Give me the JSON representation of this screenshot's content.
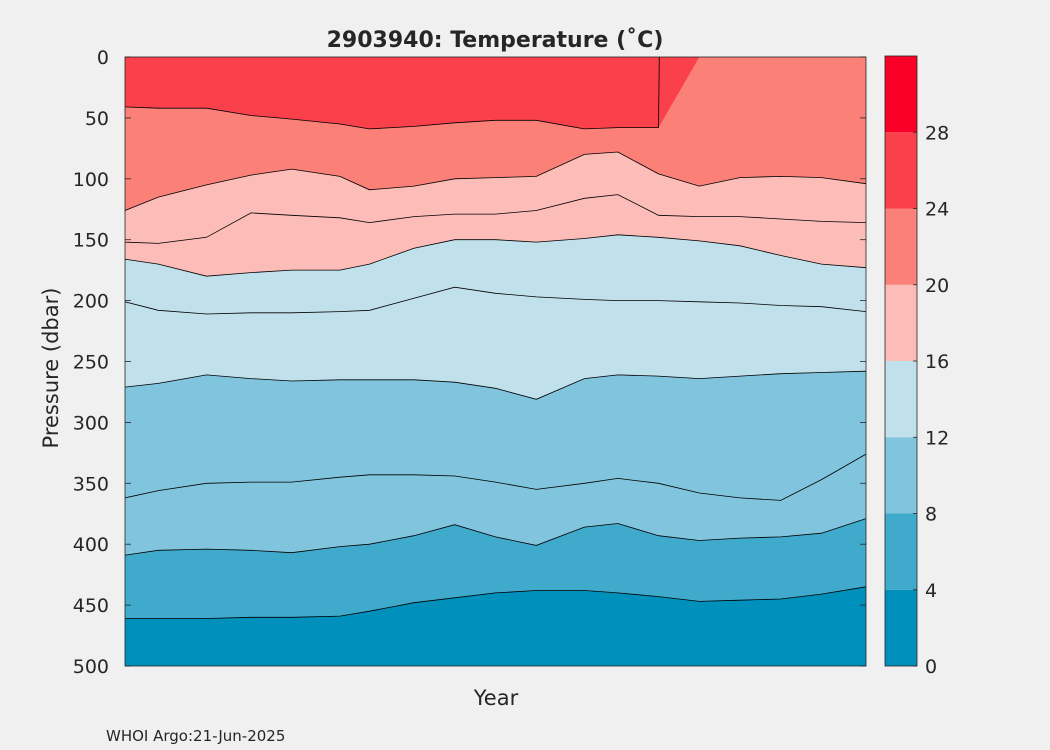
{
  "chart_data": {
    "type": "contour",
    "title": "2903940:  Temperature (˚C)",
    "xlabel": "Year",
    "ylabel": "Pressure (dbar)",
    "ylim": [
      0,
      500
    ],
    "y_reversed": true,
    "y_ticks": [
      "0",
      "50",
      "100",
      "150",
      "200",
      "250",
      "300",
      "350",
      "400",
      "450",
      "500"
    ],
    "x_ticks": [],
    "colorbar": {
      "range": [
        0,
        32
      ],
      "tick_values": [
        0,
        4,
        8,
        12,
        16,
        20,
        24,
        28
      ],
      "tick_labels": [
        "0",
        "4",
        "8",
        "12",
        "16",
        "20",
        "24",
        "28"
      ],
      "levels": [
        {
          "from": 0,
          "to": 4,
          "color": "#0090bc"
        },
        {
          "from": 4,
          "to": 8,
          "color": "#40aacc"
        },
        {
          "from": 8,
          "to": 12,
          "color": "#80c4de"
        },
        {
          "from": 12,
          "to": 16,
          "color": "#c0e0ec"
        },
        {
          "from": 16,
          "to": 20,
          "color": "#fcbcb8"
        },
        {
          "from": 20,
          "to": 24,
          "color": "#fa8078"
        },
        {
          "from": 24,
          "to": 28,
          "color": "#fa404a"
        },
        {
          "from": 28,
          "to": 32,
          "color": "#fa0028"
        }
      ]
    },
    "x_profile_positions": [
      0,
      0.045,
      0.11,
      0.17,
      0.225,
      0.29,
      0.33,
      0.39,
      0.445,
      0.5,
      0.555,
      0.62,
      0.665,
      0.72,
      0.775,
      0.83,
      0.885,
      0.94,
      1.0
    ],
    "contours": [
      {
        "level": 4,
        "depths": [
          461,
          461,
          461,
          460,
          460,
          459,
          455,
          448,
          444,
          440,
          438,
          438,
          440,
          443,
          447,
          446,
          445,
          441,
          435
        ]
      },
      {
        "level": 8,
        "depths": [
          409,
          405,
          404,
          405,
          407,
          402,
          400,
          393,
          384,
          394,
          401,
          386,
          383,
          393,
          397,
          395,
          394,
          391,
          379
        ]
      },
      {
        "level": 8,
        "depths": [
          362,
          356,
          350,
          349,
          349,
          345,
          343,
          343,
          344,
          349,
          355,
          350,
          346,
          350,
          358,
          362,
          364,
          347,
          326
        ]
      },
      {
        "level": 12,
        "depths": [
          271,
          268,
          261,
          264,
          266,
          265,
          265,
          265,
          267,
          272,
          281,
          264,
          261,
          262,
          264,
          262,
          260,
          259,
          258
        ]
      },
      {
        "level": 12,
        "depths": [
          201,
          208,
          211,
          210,
          210,
          209,
          208,
          198,
          189,
          194,
          197,
          199,
          200,
          200,
          201,
          202,
          204,
          205,
          209
        ]
      },
      {
        "level": 16,
        "depths": [
          166,
          170,
          180,
          177,
          175,
          175,
          170,
          157,
          150,
          150,
          152,
          149,
          146,
          148,
          151,
          155,
          163,
          170,
          173
        ]
      },
      {
        "level": 16,
        "depths": [
          152,
          153,
          148,
          128,
          130,
          132,
          136,
          131,
          129,
          129,
          126,
          116,
          113,
          130,
          131,
          131,
          133,
          135,
          136
        ]
      },
      {
        "level": 20,
        "depths": [
          126,
          115,
          105,
          97,
          92,
          98,
          109,
          106,
          100,
          99,
          98,
          80,
          78,
          96,
          106,
          99,
          98,
          99,
          104
        ]
      },
      {
        "level": 24,
        "depths": [
          41,
          42,
          42,
          48,
          51,
          55,
          59,
          57,
          54,
          52,
          52,
          59,
          58,
          58,
          0,
          0,
          0,
          0,
          0
        ]
      }
    ]
  },
  "footer": {
    "credit": "WHOI Argo:21-Jun-2025"
  }
}
